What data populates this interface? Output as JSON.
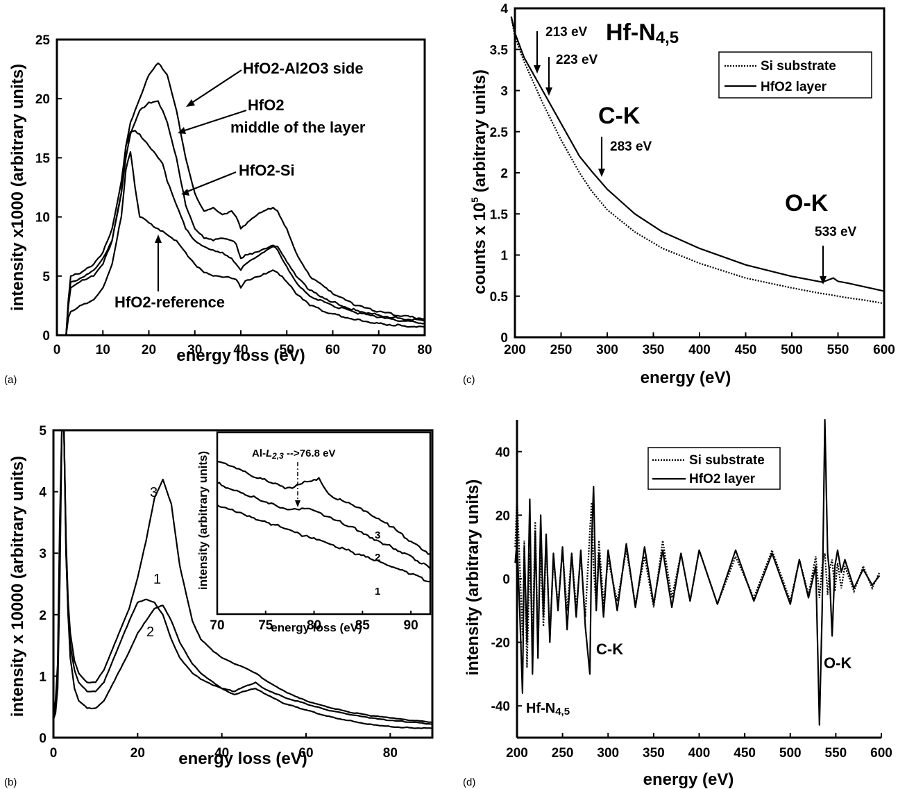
{
  "chart_data": [
    {
      "panel": "(a)",
      "type": "line",
      "xlabel": "energy loss (eV)",
      "ylabel": "intensity x1000 (arbitrary units)",
      "xlim": [
        0,
        80
      ],
      "ylim": [
        0,
        25
      ],
      "xticks": [
        0,
        10,
        20,
        30,
        40,
        50,
        60,
        70,
        80
      ],
      "yticks": [
        0,
        5,
        10,
        15,
        20,
        25
      ],
      "x": [
        2,
        2.5,
        3,
        5,
        8,
        10,
        12,
        14,
        15,
        16,
        17,
        18,
        20,
        22,
        23,
        24,
        26,
        28,
        30,
        32,
        34,
        36,
        38,
        39,
        40,
        41,
        43,
        45,
        47,
        48,
        50,
        52,
        55,
        60,
        65,
        70,
        75,
        80
      ],
      "series": [
        {
          "name": "HfO2-Al2O3 side",
          "values": [
            0,
            3,
            5,
            5.2,
            6,
            7,
            9,
            13,
            16,
            18,
            19,
            20,
            22,
            23,
            22.5,
            22,
            19,
            15,
            12,
            10.5,
            10.8,
            10.2,
            10.5,
            10,
            9,
            9.3,
            10,
            10.5,
            10.8,
            10.5,
            9,
            7,
            5,
            3.5,
            2.5,
            2,
            1.6,
            1.4
          ]
        },
        {
          "name": "HfO2 middle of the layer",
          "values": [
            0,
            3,
            4.5,
            4.8,
            5.5,
            6.5,
            8,
            12,
            15,
            17,
            18,
            19,
            19.7,
            19.8,
            19,
            18,
            15,
            11,
            9,
            8.2,
            8,
            8.2,
            8,
            7.7,
            6.5,
            6.8,
            7,
            7.3,
            7.6,
            7.5,
            6.2,
            5,
            3.8,
            2.8,
            2.1,
            1.7,
            1.4,
            1.2
          ]
        },
        {
          "name": "HfO2-Si",
          "values": [
            0,
            2.5,
            4,
            4.5,
            5,
            6,
            8,
            12,
            16,
            17.2,
            17.3,
            17,
            16,
            15,
            14.5,
            13,
            11,
            9,
            8,
            7.5,
            7.2,
            7,
            6.5,
            6,
            5.5,
            6,
            6.5,
            7,
            7.5,
            7.2,
            5.8,
            4.5,
            3.3,
            2.5,
            1.9,
            1.5,
            1.2,
            1
          ]
        },
        {
          "name": "HfO2-reference",
          "values": [
            0,
            1.5,
            2,
            2.5,
            3,
            4,
            6,
            10,
            14,
            15.5,
            12.5,
            10,
            9.5,
            9,
            8.8,
            8.5,
            8,
            7,
            6,
            5.3,
            5,
            4.9,
            4.8,
            4.7,
            4,
            4.6,
            4.9,
            5.2,
            5.5,
            5.3,
            4.5,
            3.5,
            2.5,
            1.8,
            1.3,
            1,
            0.8,
            0.7
          ]
        }
      ],
      "annotations": {
        "al2o3": "HfO2-Al2O3 side",
        "middle1": "HfO2",
        "middle2": "middle of the layer",
        "si": "HfO2-Si",
        "reference": "HfO2-reference"
      }
    },
    {
      "panel": "(c)",
      "type": "line",
      "xlabel": "energy (eV)",
      "ylabel": "counts x 10^5 (arbitrary units)",
      "xlim": [
        200,
        600
      ],
      "ylim": [
        0,
        4
      ],
      "xticks": [
        200,
        250,
        300,
        350,
        400,
        450,
        500,
        550,
        600
      ],
      "yticks": [
        0,
        0.5,
        1,
        1.5,
        2,
        2.5,
        3,
        3.5,
        4
      ],
      "x": [
        196,
        200,
        210,
        220,
        230,
        250,
        270,
        283,
        300,
        330,
        360,
        400,
        450,
        500,
        533,
        540,
        545,
        550,
        560,
        580,
        600
      ],
      "series": [
        {
          "name": "Si substrate",
          "values": [
            3.9,
            3.65,
            3.35,
            3.1,
            2.85,
            2.4,
            2.0,
            1.78,
            1.55,
            1.28,
            1.08,
            0.9,
            0.72,
            0.6,
            0.53,
            0.52,
            0.51,
            0.5,
            0.48,
            0.45,
            0.41
          ]
        },
        {
          "name": "HfO2 layer",
          "values": [
            3.9,
            3.7,
            3.4,
            3.2,
            3.0,
            2.6,
            2.2,
            2.02,
            1.8,
            1.5,
            1.28,
            1.08,
            0.88,
            0.74,
            0.67,
            0.7,
            0.72,
            0.68,
            0.66,
            0.61,
            0.56
          ]
        }
      ],
      "annotations": {
        "hf_edge": "Hf-N",
        "hf_edge_sub": "4,5",
        "e213": "213 eV",
        "e223": "223 eV",
        "ck": "C-K",
        "e283": "283 eV",
        "ok": "O-K",
        "e533": "533 eV"
      }
    },
    {
      "panel": "(b)",
      "type": "line",
      "xlabel": "energy loss (eV)",
      "ylabel": "intensity x 10000 (arbitrary units)",
      "xlim": [
        0,
        90
      ],
      "ylim": [
        0,
        5
      ],
      "xticks": [
        0,
        20,
        40,
        60,
        80
      ],
      "yticks": [
        0,
        1,
        2,
        3,
        4,
        5
      ],
      "x": [
        0,
        0.5,
        1,
        1.5,
        2,
        2.5,
        3,
        3.5,
        4,
        5,
        6,
        8,
        10,
        12,
        15,
        18,
        20,
        22,
        24,
        26,
        28,
        30,
        33,
        35,
        38,
        40,
        43,
        45,
        48,
        50,
        55,
        60,
        65,
        70,
        75,
        80,
        85,
        90
      ],
      "series": [
        {
          "name": "1",
          "values": [
            0.3,
            0.5,
            1,
            3,
            5,
            5,
            3,
            2,
            1.5,
            1.1,
            0.9,
            0.75,
            0.75,
            0.9,
            1.4,
            1.9,
            2.2,
            2.25,
            2.2,
            2.0,
            1.6,
            1.3,
            1.05,
            0.95,
            0.85,
            0.8,
            0.75,
            0.82,
            0.9,
            0.8,
            0.65,
            0.55,
            0.45,
            0.38,
            0.32,
            0.28,
            0.25,
            0.22
          ]
        },
        {
          "name": "2",
          "values": [
            0.3,
            0.4,
            0.8,
            2.5,
            5,
            5,
            3,
            2,
            1.3,
            0.8,
            0.6,
            0.48,
            0.48,
            0.6,
            1.0,
            1.4,
            1.7,
            1.9,
            2.1,
            2.15,
            1.9,
            1.55,
            1.2,
            1.05,
            0.9,
            0.8,
            0.7,
            0.75,
            0.8,
            0.72,
            0.55,
            0.45,
            0.35,
            0.28,
            0.22,
            0.18,
            0.16,
            0.15
          ]
        },
        {
          "name": "3",
          "values": [
            0.3,
            0.6,
            1.2,
            3.5,
            5,
            5,
            3.2,
            2.2,
            1.7,
            1.25,
            1.05,
            0.9,
            0.9,
            1.1,
            1.6,
            2.1,
            2.6,
            3.2,
            3.9,
            4.2,
            3.8,
            2.8,
            1.9,
            1.6,
            1.4,
            1.3,
            1.2,
            1.15,
            1.05,
            0.95,
            0.75,
            0.6,
            0.5,
            0.42,
            0.36,
            0.32,
            0.28,
            0.25
          ]
        }
      ],
      "labels": {
        "c1": "1",
        "c2": "2",
        "c3": "3"
      },
      "inset": {
        "type": "line",
        "xlabel": "energy loss (eV)",
        "ylabel": "intensity (arbitrary units)",
        "xlim": [
          70,
          92
        ],
        "ylim": [
          0,
          1
        ],
        "xticks": [
          70,
          75,
          80,
          85,
          90
        ],
        "annotation": "Al-",
        "annotation_italic": "L",
        "annotation_sub": "2,3",
        "annotation_tail": " -->76.8 eV",
        "x": [
          70,
          72,
          74,
          76,
          77,
          78,
          79,
          80,
          80.5,
          81,
          82,
          84,
          86,
          88,
          90,
          92
        ],
        "series": [
          {
            "name": "3",
            "values": [
              0.84,
              0.8,
              0.75,
              0.72,
              0.69,
              0.7,
              0.73,
              0.74,
              0.75,
              0.7,
              0.64,
              0.6,
              0.54,
              0.48,
              0.4,
              0.33
            ]
          },
          {
            "name": "2",
            "values": [
              0.72,
              0.68,
              0.64,
              0.6,
              0.58,
              0.58,
              0.58,
              0.57,
              0.56,
              0.54,
              0.52,
              0.48,
              0.42,
              0.37,
              0.32,
              0.25
            ]
          },
          {
            "name": "1",
            "values": [
              0.6,
              0.56,
              0.52,
              0.49,
              0.47,
              0.45,
              0.43,
              0.42,
              0.41,
              0.4,
              0.38,
              0.34,
              0.3,
              0.26,
              0.22,
              0.18
            ]
          }
        ]
      }
    },
    {
      "panel": "(d)",
      "type": "line",
      "xlabel": "energy (eV)",
      "ylabel": "intensity (arbitrary units)",
      "xlim": [
        200,
        600
      ],
      "ylim": [
        -50,
        50
      ],
      "xticks": [
        200,
        250,
        300,
        350,
        400,
        450,
        500,
        550,
        600
      ],
      "yticks": [
        -40,
        -20,
        0,
        20,
        40
      ],
      "x": [
        198,
        200,
        203,
        206,
        208,
        211,
        214,
        217,
        220,
        223,
        226,
        229,
        232,
        236,
        240,
        245,
        250,
        255,
        260,
        265,
        270,
        275,
        280,
        282,
        284,
        287,
        290,
        295,
        300,
        310,
        320,
        330,
        340,
        350,
        360,
        370,
        380,
        390,
        400,
        420,
        440,
        460,
        480,
        500,
        510,
        520,
        528,
        532,
        535,
        538,
        541,
        543,
        546,
        549,
        552,
        556,
        560,
        570,
        580,
        590,
        598
      ],
      "series": [
        {
          "name": "Si substrate",
          "values": [
            10,
            26,
            5,
            -18,
            12,
            -28,
            8,
            -20,
            18,
            -22,
            10,
            -15,
            12,
            -18,
            6,
            -8,
            9,
            -10,
            8,
            -9,
            7,
            -12,
            15,
            24,
            4,
            -9,
            12,
            -8,
            6,
            -7,
            9,
            -8,
            7,
            -9,
            12,
            -6,
            8,
            -7,
            9,
            -8,
            7,
            -6,
            9,
            -7,
            6,
            -5,
            7,
            -6,
            4,
            8,
            -5,
            3,
            6,
            -4,
            5,
            -3,
            4,
            -4,
            4,
            -3,
            2
          ]
        },
        {
          "name": "HfO2 layer",
          "values": [
            5,
            12,
            -10,
            -36,
            10,
            -20,
            25,
            -30,
            15,
            -25,
            20,
            -12,
            14,
            -20,
            8,
            -10,
            10,
            -16,
            8,
            -12,
            9,
            -15,
            -30,
            12,
            29,
            -10,
            8,
            -12,
            9,
            -10,
            11,
            -9,
            10,
            -8,
            9,
            -9,
            8,
            -7,
            9,
            -8,
            9,
            -7,
            8,
            -8,
            6,
            -6,
            4,
            -46,
            -10,
            50,
            8,
            2,
            -18,
            4,
            9,
            2,
            6,
            -3,
            3,
            -2,
            1
          ]
        }
      ],
      "annotations": {
        "hf_edge": "Hf-N",
        "hf_edge_sub": "4,5",
        "ck": "C-K",
        "ok": "O-K"
      }
    }
  ],
  "panels": {
    "a": "(a)",
    "b": "(b)",
    "c": "(c)",
    "d": "(d)"
  },
  "axes": {
    "a": {
      "xlabel": "energy loss (eV)",
      "ylabel": "intensity x1000 (arbitrary units)"
    },
    "b": {
      "xlabel": "energy loss (eV)",
      "ylabel": "intensity x 10000 (arbitrary units)",
      "inset_xlabel": "energy loss (eV)",
      "inset_ylabel": "intensity (arbitrary units)"
    },
    "c": {
      "xlabel": "energy (eV)",
      "ylabel_pre": "counts x 10",
      "ylabel_sup": "5",
      "ylabel_post": " (arbitrary units)"
    },
    "d": {
      "xlabel": "energy (eV)",
      "ylabel": "intensity (arbitrary units)"
    }
  },
  "legend": {
    "si": "Si substrate",
    "hfo2": "HfO2 layer",
    "placement": "top-right"
  },
  "colors": {
    "line": "#000000",
    "background": "#ffffff"
  }
}
